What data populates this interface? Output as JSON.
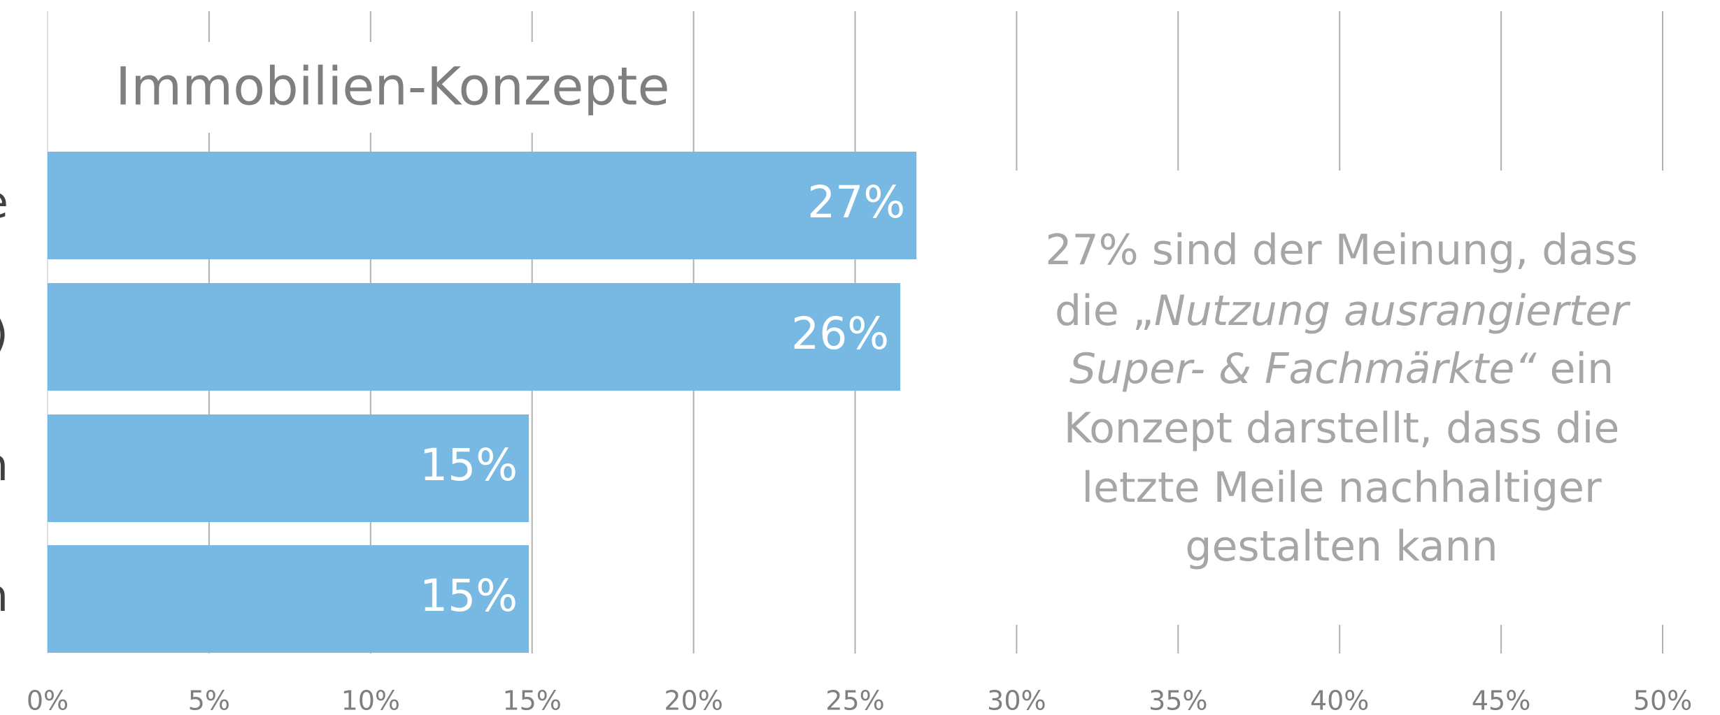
{
  "chart_data": {
    "type": "hbar",
    "title": "Immobilien-Konzepte",
    "categories": [
      "e",
      ")",
      "n",
      "n"
    ],
    "values": [
      26.9,
      26.4,
      14.9,
      14.9
    ],
    "value_labels": [
      "27%",
      "26%",
      "15%",
      "15%"
    ],
    "color": "#77b9e3",
    "xlim": [
      0,
      50
    ],
    "xticks": [
      {
        "value": 0,
        "label": "0%"
      },
      {
        "value": 5,
        "label": "5%"
      },
      {
        "value": 10,
        "label": "10%"
      },
      {
        "value": 15,
        "label": "15%"
      },
      {
        "value": 20,
        "label": "20%"
      },
      {
        "value": 25,
        "label": "25%"
      },
      {
        "value": 30,
        "label": "30%"
      },
      {
        "value": 35,
        "label": "35%"
      },
      {
        "value": 40,
        "label": "40%"
      },
      {
        "value": 45,
        "label": "45%"
      },
      {
        "value": 50,
        "label": "50%"
      }
    ],
    "grid": true,
    "annotation": [
      [
        {
          "text": "27% sind der Meinung, dass",
          "italic": false
        }
      ],
      [
        {
          "text": "die „",
          "italic": false
        },
        {
          "text": "Nutzung ausrangierter",
          "italic": true
        }
      ],
      [
        {
          "text": "Super- & Fachmärkte“",
          "italic": true
        },
        {
          "text": " ein",
          "italic": false
        }
      ],
      [
        {
          "text": "Konzept darstellt, dass die",
          "italic": false
        }
      ],
      [
        {
          "text": "letzte Meile nachhaltiger",
          "italic": false
        }
      ],
      [
        {
          "text": "gestalten kann",
          "italic": false
        }
      ]
    ]
  }
}
